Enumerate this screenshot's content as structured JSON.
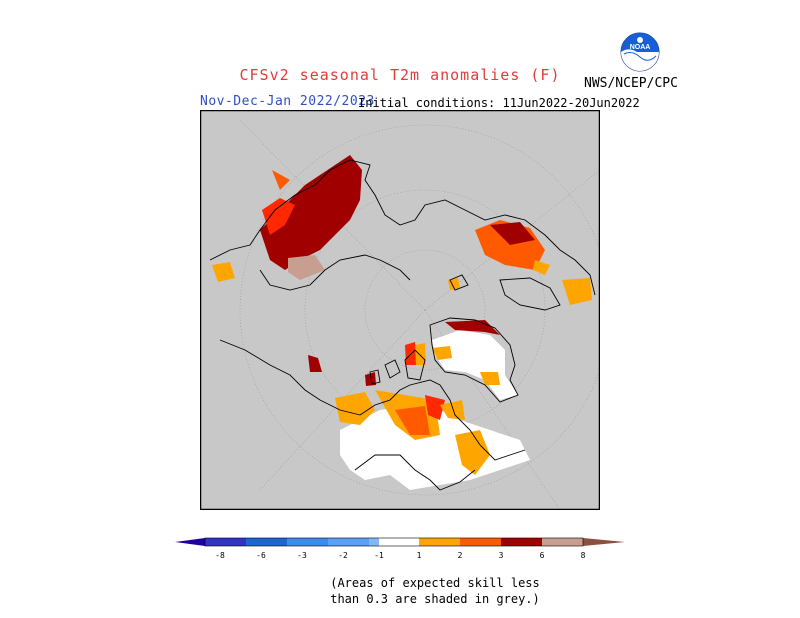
{
  "header": {
    "title": "CFSv2 seasonal T2m anomalies (F)",
    "period": "Nov-Dec-Jan 2022/2023",
    "initial_conditions": "Initial conditions: 11Jun2022-20Jun2022",
    "agency": "NWS/NCEP/CPC",
    "logo_text": "NOAA"
  },
  "colors": {
    "title": "#e03c3c",
    "period": "#3050c0",
    "map_background": "#c8c8c8",
    "coastline": "#000000",
    "no_signal": "#ffffff",
    "cold_1": "#80b8f8",
    "cold_2": "#3c8cf0",
    "cold_3": "#1e64d2",
    "cold_4": "#3232c8",
    "cold_5": "#1e00a0",
    "warm_1": "#ffa500",
    "warm_2": "#ff5a00",
    "warm_3": "#ff2800",
    "warm_4": "#a00000",
    "warm_5": "#c89e90",
    "warm_6": "#8a5040"
  },
  "legend": {
    "labels": [
      "-8",
      "-6",
      "-3",
      "-2",
      "-1",
      "1",
      "2",
      "3",
      "6",
      "8"
    ]
  },
  "note": {
    "line1": "(Areas of expected skill less",
    "line2": "than 0.3 are shaded in grey.)"
  }
}
